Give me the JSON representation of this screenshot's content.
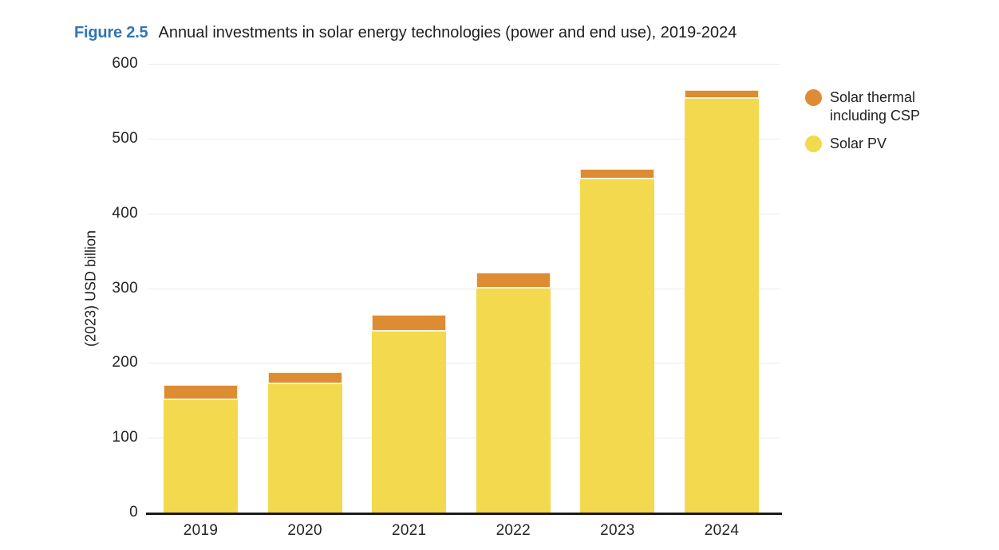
{
  "figure": {
    "label": "Figure 2.5",
    "title": "Annual investments in solar energy technologies (power and end use), 2019-2024"
  },
  "chart_data": {
    "type": "bar",
    "stacked": true,
    "categories": [
      "2019",
      "2020",
      "2021",
      "2022",
      "2023",
      "2024"
    ],
    "series": [
      {
        "name": "Solar PV",
        "color": "#f3d94e",
        "values": [
          150,
          172,
          242,
          300,
          445,
          553
        ]
      },
      {
        "name": "Solar thermal including CSP",
        "color": "#de8c33",
        "values": [
          21,
          16,
          22,
          21,
          14,
          12
        ]
      }
    ],
    "totals": [
      171,
      188,
      264,
      321,
      459,
      565
    ],
    "title": "Annual investments in solar energy technologies (power and end use), 2019-2024",
    "xlabel": "",
    "ylabel": "(2023) USD billion",
    "ylim": [
      0,
      600
    ],
    "yticks": [
      0,
      100,
      200,
      300,
      400,
      500,
      600
    ],
    "grid": true,
    "legend_position": "right"
  },
  "legend": {
    "items": [
      {
        "lines": [
          "Solar thermal",
          "including CSP"
        ],
        "color": "#de8c33"
      },
      {
        "lines": [
          "Solar PV"
        ],
        "color": "#f3d94e"
      }
    ]
  },
  "colors": {
    "figure_label_blue": "#2e75b6",
    "solar_thermal_orange": "#de8c33",
    "solar_pv_yellow": "#f3d94e",
    "segment_separator": "#fbf4d8",
    "grid_line": "#ebebeb",
    "axis_line": "#1a1a1a",
    "text": "#1f1f1f"
  }
}
